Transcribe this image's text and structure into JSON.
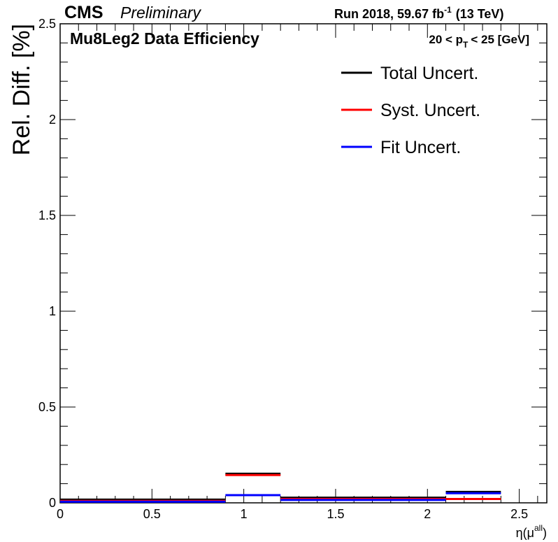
{
  "header": {
    "experiment": "CMS",
    "status": "Preliminary",
    "run_info": "Run 2018,  59.67 fb",
    "lumi_exponent": "-1",
    "energy": "(13 TeV)"
  },
  "chart_data": {
    "type": "step",
    "title": "Mu8Leg2 Data Efficiency",
    "cut_label": {
      "left": "20 < p",
      "subscript": "T",
      "right": "< 25 [GeV]"
    },
    "xlabel": {
      "base": "η(μ",
      "superscript": "all",
      "close": ")"
    },
    "ylabel": "Rel. Diff. [%]",
    "xlim": [
      0,
      2.65
    ],
    "ylim": [
      0,
      2.5
    ],
    "x_ticks": [
      0,
      0.5,
      1,
      1.5,
      2,
      2.5
    ],
    "x_tick_labels": [
      "0",
      "0.5",
      "1",
      "1.5",
      "2",
      "2.5"
    ],
    "y_ticks": [
      0,
      0.5,
      1,
      1.5,
      2,
      2.5
    ],
    "y_tick_labels": [
      "0",
      "0.5",
      "1",
      "1.5",
      "2",
      "2.5"
    ],
    "bin_edges": [
      0,
      0.9,
      1.2,
      2.1,
      2.4
    ],
    "series": [
      {
        "name": "Total Uncert.",
        "color": "#000000",
        "values": [
          0.015,
          0.15,
          0.025,
          0.055
        ]
      },
      {
        "name": "Syst. Uncert.",
        "color": "#ff0000",
        "values": [
          0.01,
          0.145,
          0.02,
          0.02
        ]
      },
      {
        "name": "Fit Uncert.",
        "color": "#0000ff",
        "values": [
          0.006,
          0.04,
          0.015,
          0.05
        ]
      }
    ],
    "legend_position": "top-right",
    "grid": false
  }
}
